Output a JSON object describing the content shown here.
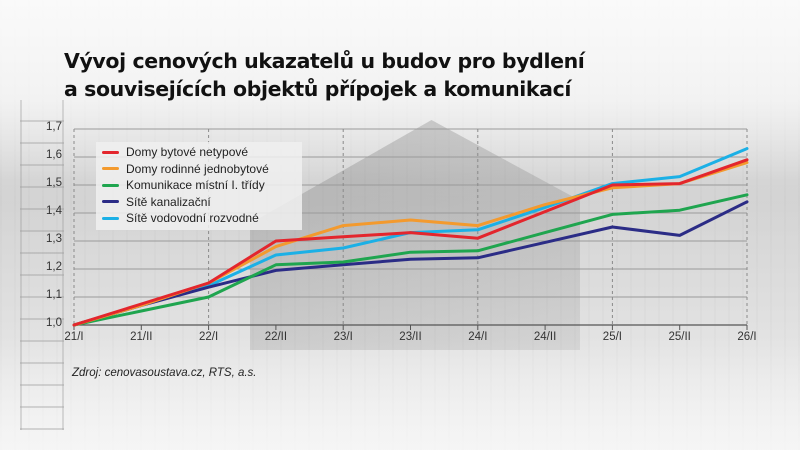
{
  "title": {
    "line1": "Vývoj cenových ukazatelů u budov pro bydlení",
    "line2": "a souvisejících objektů přípojek a komunikací"
  },
  "source": "Zdroj: cenovasoustava.cz, RTS, a.s.",
  "chart_data": {
    "type": "line",
    "title": "Vývoj cenových ukazatelů u budov pro bydlení a souvisejících objektů přípojek a komunikací",
    "xlabel": "",
    "ylabel": "",
    "categories": [
      "21/I",
      "21/II",
      "22/I",
      "22/II",
      "23/I",
      "23/II",
      "24/I",
      "24/II",
      "25/I",
      "25/II",
      "26/I"
    ],
    "y_ticks": [
      "1,0",
      "1,1",
      "1,2",
      "1,3",
      "1,4",
      "1,5",
      "1,6",
      "1,7"
    ],
    "ylim": [
      1.0,
      1.7
    ],
    "grid": true,
    "legend_position": "upper-left",
    "series": [
      {
        "name": "Domy bytové netypové",
        "color": "#e3262d",
        "values": [
          1.0,
          1.075,
          1.15,
          1.3,
          1.315,
          1.33,
          1.31,
          1.405,
          1.5,
          1.505,
          1.59
        ]
      },
      {
        "name": "Domy rodinné jednobytové",
        "color": "#f39a2e",
        "values": [
          1.0,
          1.07,
          1.15,
          1.28,
          1.355,
          1.375,
          1.355,
          1.43,
          1.49,
          1.505,
          1.58
        ]
      },
      {
        "name": "Komunikace místní I. třídy",
        "color": "#1fa54f",
        "values": [
          1.0,
          1.05,
          1.1,
          1.215,
          1.225,
          1.26,
          1.265,
          1.33,
          1.395,
          1.41,
          1.465
        ]
      },
      {
        "name": "Sítě kanalizační",
        "color": "#2b2c86",
        "values": [
          1.0,
          1.07,
          1.135,
          1.195,
          1.215,
          1.235,
          1.24,
          1.295,
          1.35,
          1.32,
          1.44
        ]
      },
      {
        "name": "Sítě vodovodní rozvodné",
        "color": "#1bb0e6",
        "values": [
          1.0,
          1.07,
          1.14,
          1.25,
          1.275,
          1.33,
          1.34,
          1.42,
          1.505,
          1.53,
          1.63
        ]
      }
    ]
  }
}
